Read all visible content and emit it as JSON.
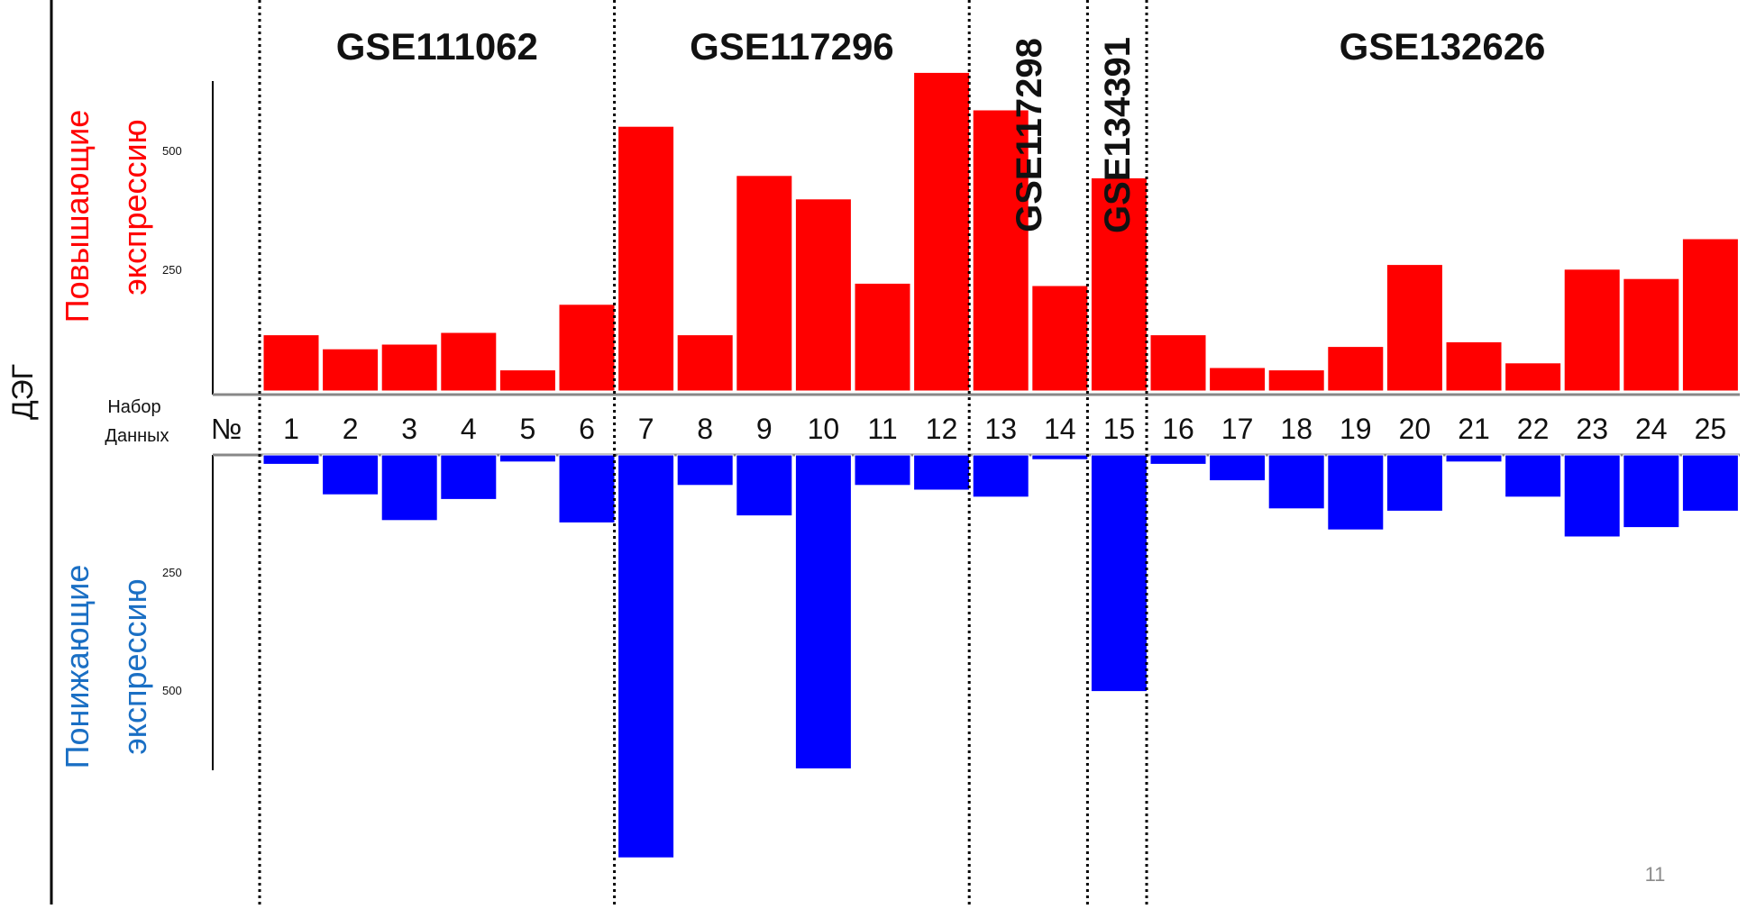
{
  "slide_number": "11",
  "chart_data": {
    "type": "bar",
    "side_label": "ДЭГ",
    "up_label_line1": "Повышающие",
    "up_label_line2": "экспрессию",
    "down_label_line1": "Понижающие",
    "down_label_line2": "экспрессию",
    "dataset_label_line1": "Набор",
    "dataset_label_line2": "Данных",
    "number_sign": "№",
    "up_ticks": [
      "250",
      "500"
    ],
    "down_ticks": [
      "250",
      "500"
    ],
    "categories": [
      "1",
      "2",
      "3",
      "4",
      "5",
      "6",
      "7",
      "8",
      "9",
      "10",
      "11",
      "12",
      "13",
      "14",
      "15",
      "16",
      "17",
      "18",
      "19",
      "20",
      "21",
      "22",
      "23",
      "24",
      "25"
    ],
    "series": [
      {
        "name": "Повышающие экспрессию",
        "color": "#ff0000",
        "values": [
          120,
          90,
          100,
          125,
          45,
          185,
          565,
          120,
          460,
          410,
          230,
          680,
          600,
          225,
          455,
          120,
          50,
          45,
          95,
          270,
          105,
          60,
          260,
          240,
          325
        ]
      },
      {
        "name": "Понижающие экспрессию",
        "color": "#0000ff",
        "values": [
          20,
          85,
          140,
          95,
          15,
          145,
          860,
          65,
          130,
          670,
          65,
          75,
          90,
          10,
          505,
          20,
          55,
          115,
          160,
          120,
          15,
          90,
          175,
          155,
          120
        ]
      }
    ],
    "groups": [
      {
        "label": "GSE111062",
        "members": [
          "1",
          "2",
          "3",
          "4",
          "5",
          "6"
        ]
      },
      {
        "label": "GSE117296",
        "members": [
          "7",
          "8",
          "9",
          "10",
          "11",
          "12"
        ]
      },
      {
        "label": "GSE117298",
        "members": [
          "13",
          "14"
        ]
      },
      {
        "label": "GSE134391",
        "members": [
          "15"
        ]
      },
      {
        "label": "GSE132626",
        "members": [
          "16",
          "17",
          "18",
          "19",
          "20",
          "21",
          "22",
          "23",
          "24",
          "25"
        ]
      }
    ],
    "ylim_up": [
      0,
      680
    ],
    "ylim_down": [
      0,
      860
    ],
    "grid": false,
    "legend": "none"
  }
}
